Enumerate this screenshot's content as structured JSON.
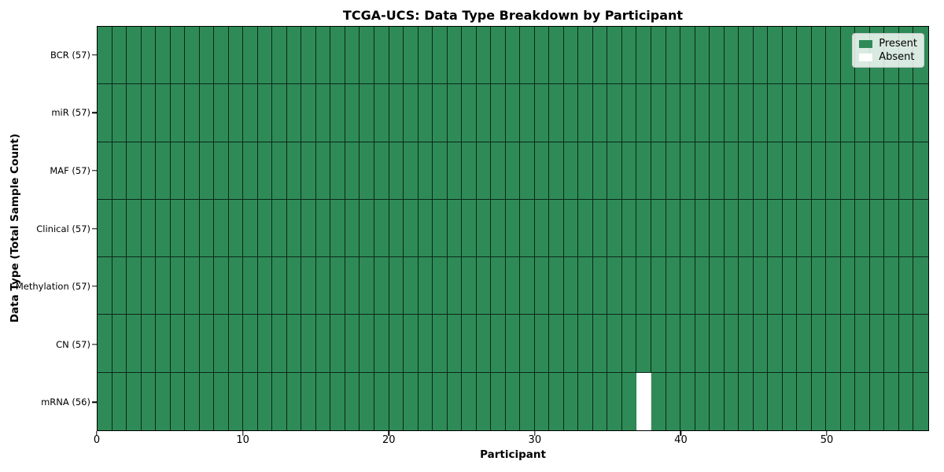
{
  "figure": {
    "background": "#ffffff"
  },
  "chart_data": {
    "type": "heatmap",
    "title": "TCGA-UCS: Data Type Breakdown by Participant",
    "xlabel": "Participant",
    "ylabel": "Data Type (Total Sample Count)",
    "xlim": [
      0,
      57
    ],
    "n_participants": 57,
    "x_ticks": [
      0,
      10,
      20,
      30,
      40,
      50
    ],
    "grid": true,
    "legend_position": "upper-right",
    "rows": [
      {
        "name": "BCR",
        "label": "BCR (57)",
        "total": 57,
        "absent_participants": []
      },
      {
        "name": "miR",
        "label": "miR (57)",
        "total": 57,
        "absent_participants": []
      },
      {
        "name": "MAF",
        "label": "MAF (57)",
        "total": 57,
        "absent_participants": []
      },
      {
        "name": "Clinical",
        "label": "Clinical (57)",
        "total": 57,
        "absent_participants": []
      },
      {
        "name": "Methylation",
        "label": "Methylation (57)",
        "total": 57,
        "absent_participants": []
      },
      {
        "name": "CN",
        "label": "CN (57)",
        "total": 57,
        "absent_participants": []
      },
      {
        "name": "mRNA",
        "label": "mRNA (56)",
        "total": 56,
        "absent_participants": [
          37
        ]
      }
    ],
    "legend": [
      {
        "name": "present",
        "label": "Present",
        "color": "#2e8b57"
      },
      {
        "name": "absent",
        "label": "Absent",
        "color": "#ffffff"
      }
    ],
    "colors": {
      "present": "#2e8b57",
      "absent": "#ffffff",
      "gridline": "rgba(0,0,0,0.72)",
      "spine": "#000000",
      "legend_border": "#cccccc"
    }
  }
}
